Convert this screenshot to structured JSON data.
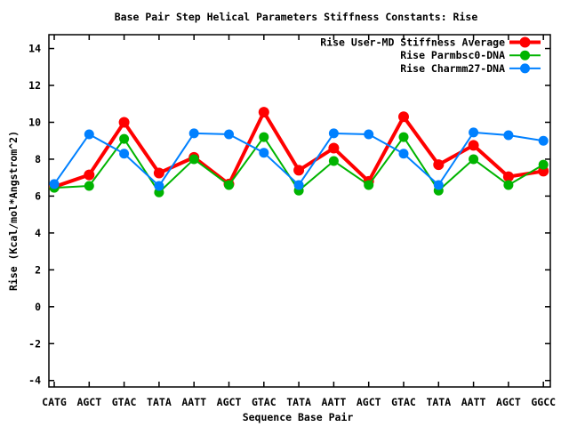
{
  "chart_data": {
    "type": "line",
    "title": "Base Pair Step Helical Parameters Stiffness Constants: Rise",
    "xlabel": "Sequence Base Pair",
    "ylabel": "Rise (Kcal/mol*Angstrom^2)",
    "categories": [
      "CATG",
      "AGCT",
      "GTAC",
      "TATA",
      "AATT",
      "AGCT",
      "GTAC",
      "TATA",
      "AATT",
      "AGCT",
      "GTAC",
      "TATA",
      "AATT",
      "AGCT",
      "GGCC"
    ],
    "yticks": [
      14,
      12,
      10,
      8,
      6,
      4,
      2,
      0,
      -2,
      -4
    ],
    "ylim": [
      -4.35,
      14.75
    ],
    "grid": false,
    "legend_position": "top-right-inside",
    "background_color": "#ffffff",
    "axis_color": "#000000",
    "series": [
      {
        "name": "Rise User-MD Stiffness Average",
        "color": "#ff0000",
        "marker": "filled-circle",
        "values": [
          6.5,
          7.15,
          10.0,
          7.25,
          8.1,
          6.65,
          10.55,
          7.4,
          8.6,
          6.8,
          10.3,
          7.7,
          8.75,
          7.05,
          7.35
        ]
      },
      {
        "name": "Rise Parmbsc0-DNA",
        "color": "#00b400",
        "marker": "filled-circle",
        "values": [
          6.45,
          6.55,
          9.1,
          6.2,
          8.0,
          6.6,
          9.2,
          6.3,
          7.9,
          6.6,
          9.2,
          6.3,
          8.0,
          6.6,
          7.7
        ]
      },
      {
        "name": "Rise Charmm27-DNA",
        "color": "#0080ff",
        "marker": "filled-circle",
        "values": [
          6.65,
          9.35,
          8.3,
          6.55,
          9.4,
          9.35,
          8.35,
          6.6,
          9.4,
          9.35,
          8.3,
          6.6,
          9.45,
          9.3,
          9.0
        ]
      }
    ]
  }
}
